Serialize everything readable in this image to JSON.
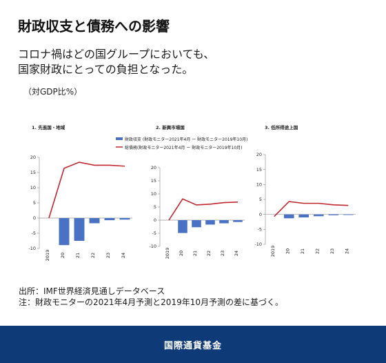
{
  "header": {
    "title": "財政収支と債務への影響",
    "subtitle_line1": "コロナ禍はどの国グループにおいても、",
    "subtitle_line2": "国家財政にとっての負担となった。",
    "unit": "（対GDP比%）"
  },
  "legend": {
    "bar_label": "財政収支 (財政モニター2021年4月 ー 財政モニター2019年10月)",
    "line_label": "総債務(財政モニター2021年4月 ー 財政モニター2019年10月)"
  },
  "colors": {
    "bar": "#4a72c4",
    "line": "#c0262b",
    "footer": "#0f3a78"
  },
  "chart_data": [
    {
      "type": "bar",
      "title": "1.  先進国・地域",
      "categories": [
        "2019",
        "20",
        "21",
        "22",
        "23",
        "24"
      ],
      "ylim": [
        -10,
        20
      ],
      "yticks": [
        -10,
        -5,
        0,
        5,
        10,
        15,
        20
      ],
      "series": [
        {
          "type": "bar",
          "values": [
            0,
            -8.9,
            -7.5,
            -1.7,
            -0.7,
            -0.5
          ]
        },
        {
          "type": "line",
          "values": [
            0,
            16.4,
            18.4,
            17.4,
            17.4,
            17.1
          ]
        }
      ]
    },
    {
      "type": "bar",
      "title": "2.  新興市場国",
      "categories": [
        "2019",
        "20",
        "21",
        "22",
        "23",
        "24"
      ],
      "ylim": [
        -10,
        20
      ],
      "yticks": [
        -10,
        -5,
        0,
        5,
        10,
        15,
        20
      ],
      "series": [
        {
          "type": "bar",
          "values": [
            0,
            -4.9,
            -2.7,
            -1.7,
            -1.2,
            -0.7
          ]
        },
        {
          "type": "line",
          "values": [
            0,
            8.1,
            5.8,
            6.1,
            6.7,
            6.9
          ]
        }
      ]
    },
    {
      "type": "bar",
      "title": "3.  低所得途上国",
      "categories": [
        "2019",
        "20",
        "21",
        "22",
        "23",
        "24"
      ],
      "ylim": [
        -10,
        20
      ],
      "yticks": [
        -10,
        -5,
        0,
        5,
        10,
        15,
        20
      ],
      "series": [
        {
          "type": "bar",
          "values": [
            0,
            -1.3,
            -1.0,
            -0.6,
            -0.3,
            -0.2
          ]
        },
        {
          "type": "line",
          "values": [
            -0.7,
            4.3,
            3.7,
            3.7,
            3.2,
            3.0
          ]
        }
      ]
    }
  ],
  "footnotes": {
    "source": "出所：IMF世界経済見通しデータベース",
    "note": "注：財政モニターの2021年4月予測と2019年10月予測の差に基づく。"
  },
  "footer": {
    "label": "国際通貨基金"
  }
}
